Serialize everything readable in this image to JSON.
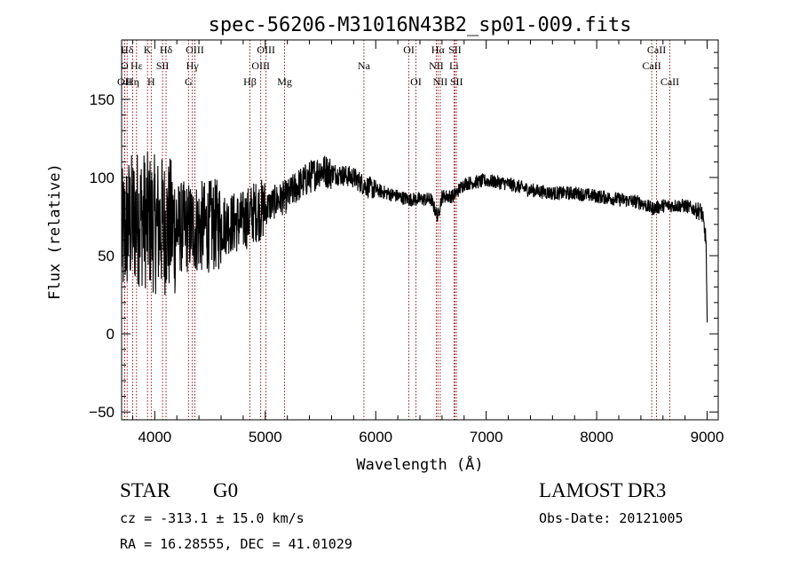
{
  "chart_data": {
    "type": "line",
    "title": "spec-56206-M31016N43B2_sp01-009.fits",
    "xlabel": "Wavelength (Å)",
    "ylabel": "Flux (relative)",
    "xlim": [
      3700,
      9100
    ],
    "ylim": [
      -55,
      188
    ],
    "xticks": [
      4000,
      5000,
      6000,
      7000,
      8000,
      9000
    ],
    "yticks": [
      -50,
      0,
      50,
      100,
      150
    ],
    "spectrum_anchors": [
      [
        3700,
        60
      ],
      [
        3760,
        70
      ],
      [
        3850,
        75
      ],
      [
        4000,
        70
      ],
      [
        4200,
        68
      ],
      [
        4400,
        68
      ],
      [
        4600,
        70
      ],
      [
        4800,
        72
      ],
      [
        4900,
        78
      ],
      [
        5000,
        80
      ],
      [
        5100,
        85
      ],
      [
        5200,
        88
      ],
      [
        5300,
        95
      ],
      [
        5400,
        100
      ],
      [
        5500,
        105
      ],
      [
        5600,
        103
      ],
      [
        5800,
        100
      ],
      [
        5900,
        95
      ],
      [
        6000,
        92
      ],
      [
        6200,
        88
      ],
      [
        6300,
        86
      ],
      [
        6500,
        86
      ],
      [
        6560,
        75
      ],
      [
        6600,
        88
      ],
      [
        6700,
        88
      ],
      [
        6800,
        96
      ],
      [
        7000,
        98
      ],
      [
        7200,
        96
      ],
      [
        7400,
        92
      ],
      [
        7600,
        90
      ],
      [
        7800,
        90
      ],
      [
        8000,
        88
      ],
      [
        8200,
        86
      ],
      [
        8400,
        84
      ],
      [
        8500,
        80
      ],
      [
        8600,
        82
      ],
      [
        8800,
        82
      ],
      [
        8950,
        78
      ],
      [
        8990,
        60
      ],
      [
        9000,
        5
      ]
    ],
    "emission_lines": [
      {
        "label": "Hδ",
        "wave": 3750,
        "row": 0
      },
      {
        "label": "O",
        "wave": 3727,
        "row": 1
      },
      {
        "label": "OII",
        "wave": 3727,
        "row": 2
      },
      {
        "label": "Hε",
        "wave": 3835,
        "row": 1
      },
      {
        "label": "Hη",
        "wave": 3800,
        "row": 2
      },
      {
        "label": "K",
        "wave": 3934,
        "row": 0
      },
      {
        "label": "H",
        "wave": 3968,
        "row": 2
      },
      {
        "label": "SII",
        "wave": 4070,
        "row": 1
      },
      {
        "label": "Hδ",
        "wave": 4102,
        "row": 0
      },
      {
        "label": "OIII",
        "wave": 4363,
        "row": 0
      },
      {
        "label": "Hγ",
        "wave": 4340,
        "row": 1
      },
      {
        "label": "G",
        "wave": 4305,
        "row": 2
      },
      {
        "label": "Hβ",
        "wave": 4861,
        "row": 2
      },
      {
        "label": "OIII",
        "wave": 4959,
        "row": 1
      },
      {
        "label": "OIII",
        "wave": 5007,
        "row": 0
      },
      {
        "label": "Mg",
        "wave": 5175,
        "row": 2
      },
      {
        "label": "Na",
        "wave": 5893,
        "row": 1
      },
      {
        "label": "OI",
        "wave": 6300,
        "row": 0
      },
      {
        "label": "OI",
        "wave": 6364,
        "row": 2
      },
      {
        "label": "Hα",
        "wave": 6563,
        "row": 0
      },
      {
        "label": "NII",
        "wave": 6548,
        "row": 1
      },
      {
        "label": "NII",
        "wave": 6584,
        "row": 2
      },
      {
        "label": "SII",
        "wave": 6717,
        "row": 0
      },
      {
        "label": "Li",
        "wave": 6708,
        "row": 1
      },
      {
        "label": "SII",
        "wave": 6731,
        "row": 2
      },
      {
        "label": "CaII",
        "wave": 8542,
        "row": 0
      },
      {
        "label": "CaII",
        "wave": 8498,
        "row": 1
      },
      {
        "label": "CaII",
        "wave": 8662,
        "row": 2
      }
    ]
  },
  "info": {
    "class": "STAR",
    "subclass": "G0",
    "survey": "LAMOST DR3",
    "cz": "cz = -313.1 ± 15.0 km/s",
    "obs_date": "Obs-Date: 20121005",
    "coords": "RA =  16.28555, DEC =  41.01029"
  },
  "colors": {
    "line_marker": "#8b0000",
    "spectrum": "#000000"
  }
}
